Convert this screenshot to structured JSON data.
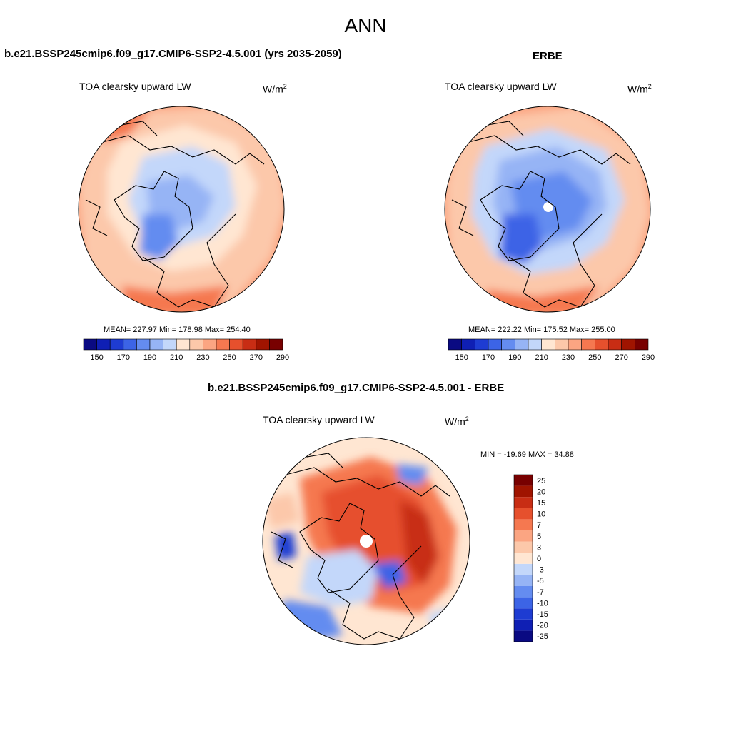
{
  "header": {
    "title": "ANN"
  },
  "panels": [
    {
      "case_title": "b.e21.BSSP245cmip6.f09_g17.CMIP6-SSP2-4.5.001 (yrs 2035-2059)",
      "variable": "TOA clearsky upward LW",
      "units": "W/m",
      "units_exp": "2",
      "stats": "MEAN= 227.97  Min= 178.98  Max= 254.40"
    },
    {
      "case_title": "ERBE",
      "variable": "TOA clearsky upward LW",
      "units": "W/m",
      "units_exp": "2",
      "stats": "MEAN= 222.22  Min= 175.52  Max= 255.00"
    },
    {
      "case_title": "b.e21.BSSP245cmip6.f09_g17.CMIP6-SSP2-4.5.001 - ERBE",
      "variable": "TOA clearsky upward LW",
      "units": "W/m",
      "units_exp": "2",
      "stats": "MIN = -19.69 MAX =  34.88"
    }
  ],
  "colorbar_abs": {
    "colors": [
      "#0a0a82",
      "#0f1fb4",
      "#1e3cd2",
      "#3c64e6",
      "#648cf0",
      "#96b4f5",
      "#c3d7fa",
      "#ffe6d2",
      "#fcc8aa",
      "#fba582",
      "#f57850",
      "#e6502d",
      "#c82d14",
      "#a01400",
      "#780000"
    ],
    "labels": [
      "150",
      "170",
      "190",
      "210",
      "230",
      "250",
      "270",
      "290"
    ]
  },
  "colorbar_diff": {
    "colors": [
      "#0a0a82",
      "#0f1fb4",
      "#1e3cd2",
      "#3c64e6",
      "#648cf0",
      "#96b4f5",
      "#c3d7fa",
      "#ffe6d2",
      "#fcc8aa",
      "#fba582",
      "#f57850",
      "#e6502d",
      "#c82d14",
      "#a01400",
      "#780000"
    ],
    "labels": [
      "-25",
      "-20",
      "-15",
      "-10",
      "-7",
      "-5",
      "-3",
      "0",
      "3",
      "5",
      "7",
      "10",
      "15",
      "20",
      "25"
    ]
  }
}
